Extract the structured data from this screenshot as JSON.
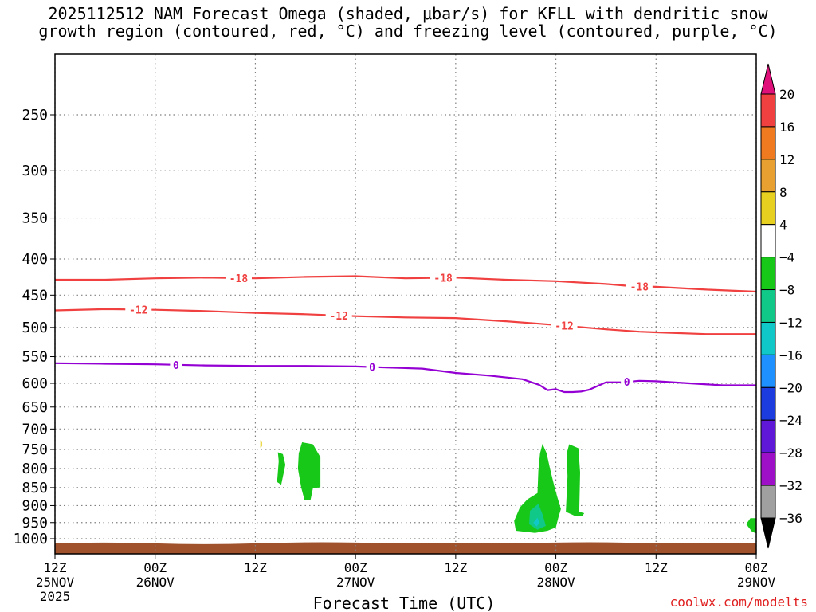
{
  "title": {
    "line1": "2025112512 NAM Forecast Omega (shaded, μbar/s) for KFLL with dendritic snow",
    "line2": "growth region (contoured, red, °C) and freezing level (contoured, purple, °C)"
  },
  "watermark": "coolwx.com/modelts",
  "colors": {
    "temp_contour": "#f04040",
    "freezing_contour": "#9400d3",
    "ground": "#a0522d",
    "grid": "#808080"
  },
  "chart_data": {
    "type": "heatmap",
    "xlabel": "Forecast Time (UTC)",
    "ylabel": "Pressure (hPa)",
    "x_range_hours": [
      0,
      84
    ],
    "y_range_hpa": [
      1050,
      200
    ],
    "y_scale": "log-pressure",
    "x_ticks": [
      {
        "hour": 0,
        "time": "12Z",
        "date": "25NOV",
        "year": "2025"
      },
      {
        "hour": 12,
        "time": "00Z",
        "date": "26NOV",
        "year": ""
      },
      {
        "hour": 24,
        "time": "12Z",
        "date": "",
        "year": ""
      },
      {
        "hour": 36,
        "time": "00Z",
        "date": "27NOV",
        "year": ""
      },
      {
        "hour": 48,
        "time": "12Z",
        "date": "",
        "year": ""
      },
      {
        "hour": 60,
        "time": "00Z",
        "date": "28NOV",
        "year": ""
      },
      {
        "hour": 72,
        "time": "12Z",
        "date": "",
        "year": ""
      },
      {
        "hour": 84,
        "time": "00Z",
        "date": "29NOV",
        "year": ""
      }
    ],
    "y_ticks": [
      250,
      300,
      350,
      400,
      450,
      500,
      550,
      600,
      650,
      700,
      750,
      800,
      850,
      900,
      950,
      1000
    ],
    "colorbar": {
      "title": "Omega (μbar/s)",
      "labels": [
        "20",
        "16",
        "12",
        "8",
        "4",
        "−4",
        "−8",
        "−12",
        "−16",
        "−20",
        "−24",
        "−28",
        "−32",
        "−36"
      ],
      "bands": [
        {
          "range": ">20",
          "color": "#e0107a"
        },
        {
          "range": "16 to 20",
          "color": "#f04040"
        },
        {
          "range": "12 to 16",
          "color": "#f07a20"
        },
        {
          "range": "8 to 12",
          "color": "#e8a030"
        },
        {
          "range": "4 to 8",
          "color": "#e8d020"
        },
        {
          "range": "-4 to 4",
          "color": "#ffffff"
        },
        {
          "range": "-8 to -4",
          "color": "#18c818"
        },
        {
          "range": "-12 to -8",
          "color": "#10c888"
        },
        {
          "range": "-16 to -12",
          "color": "#10c8c8"
        },
        {
          "range": "-20 to -16",
          "color": "#1e90ff"
        },
        {
          "range": "-24 to -20",
          "color": "#1c3ce0"
        },
        {
          "range": "-28 to -24",
          "color": "#6018d8"
        },
        {
          "range": "-32 to -28",
          "color": "#9e10c8"
        },
        {
          "range": "-36 to -32",
          "color": "#a0a0a0"
        },
        {
          "range": "<-36",
          "color": "#000000"
        }
      ]
    },
    "contours": [
      {
        "name": "-18 C isotherm",
        "level": "-18",
        "color": "#f04040",
        "points": [
          [
            0,
            428
          ],
          [
            6,
            428
          ],
          [
            12,
            426
          ],
          [
            18,
            425
          ],
          [
            24,
            426
          ],
          [
            30,
            424
          ],
          [
            36,
            423
          ],
          [
            42,
            426
          ],
          [
            48,
            425
          ],
          [
            54,
            428
          ],
          [
            60,
            430
          ],
          [
            66,
            434
          ],
          [
            69,
            437
          ],
          [
            72,
            438
          ],
          [
            78,
            442
          ],
          [
            84,
            445
          ]
        ],
        "label_hours": [
          22,
          46.5,
          70
        ]
      },
      {
        "name": "-12 C isotherm",
        "level": "-12",
        "color": "#f04040",
        "points": [
          [
            0,
            473
          ],
          [
            6,
            471
          ],
          [
            12,
            472
          ],
          [
            18,
            474
          ],
          [
            24,
            477
          ],
          [
            30,
            479
          ],
          [
            36,
            482
          ],
          [
            42,
            484
          ],
          [
            48,
            485
          ],
          [
            54,
            490
          ],
          [
            58,
            494
          ],
          [
            60,
            496
          ],
          [
            66,
            503
          ],
          [
            70,
            507
          ],
          [
            72,
            508
          ],
          [
            78,
            511
          ],
          [
            84,
            511
          ]
        ],
        "label_hours": [
          10,
          34,
          61
        ]
      },
      {
        "name": "Freezing level (0 C)",
        "level": "0",
        "color": "#9400d3",
        "points": [
          [
            0,
            562
          ],
          [
            6,
            563
          ],
          [
            12,
            564
          ],
          [
            18,
            566
          ],
          [
            24,
            567
          ],
          [
            30,
            567
          ],
          [
            36,
            568
          ],
          [
            40,
            570
          ],
          [
            44,
            572
          ],
          [
            48,
            580
          ],
          [
            52,
            585
          ],
          [
            56,
            592
          ],
          [
            58,
            603
          ],
          [
            59,
            614
          ],
          [
            60,
            612
          ],
          [
            61,
            618
          ],
          [
            62,
            618
          ],
          [
            63,
            617
          ],
          [
            64,
            613
          ],
          [
            66,
            598
          ],
          [
            68,
            598
          ],
          [
            70,
            595
          ],
          [
            72,
            596
          ],
          [
            76,
            600
          ],
          [
            80,
            604
          ],
          [
            84,
            604
          ]
        ],
        "label_hours": [
          14.5,
          38,
          68.5
        ]
      }
    ],
    "omega_regions": [
      {
        "band": "4 to 8",
        "color": "#e8d020",
        "points": [
          [
            24.6,
            727
          ],
          [
            24.8,
            732
          ],
          [
            24.8,
            742
          ],
          [
            24.6,
            746
          ]
        ]
      },
      {
        "band": "-8 to -4",
        "color": "#18c818",
        "points": [
          [
            26.7,
            757
          ],
          [
            27.3,
            762
          ],
          [
            27.6,
            790
          ],
          [
            27.1,
            842
          ],
          [
            26.6,
            835
          ],
          [
            26.8,
            780
          ]
        ]
      },
      {
        "band": "-8 to -4",
        "color": "#18c818",
        "points": [
          [
            29.6,
            732
          ],
          [
            30.9,
            737
          ],
          [
            31.8,
            770
          ],
          [
            31.8,
            849
          ],
          [
            30.9,
            852
          ],
          [
            30.6,
            885
          ],
          [
            29.9,
            885
          ],
          [
            29.5,
            850
          ],
          [
            29.1,
            800
          ],
          [
            29.2,
            760
          ]
        ]
      },
      {
        "band": "-8 to -4",
        "color": "#18c818",
        "points": [
          [
            58.4,
            736
          ],
          [
            58.9,
            760
          ],
          [
            59.3,
            800
          ],
          [
            59.8,
            845
          ],
          [
            60.2,
            878
          ],
          [
            60.6,
            910
          ],
          [
            60.3,
            935
          ],
          [
            60.0,
            965
          ],
          [
            59.0,
            975
          ],
          [
            57.5,
            982
          ],
          [
            55.2,
            975
          ],
          [
            55.0,
            945
          ],
          [
            55.7,
            905
          ],
          [
            56.6,
            882
          ],
          [
            57.8,
            865
          ],
          [
            57.9,
            805
          ],
          [
            58.1,
            760
          ]
        ]
      },
      {
        "band": "-8 to -4",
        "color": "#18c818",
        "points": [
          [
            61.6,
            737
          ],
          [
            62.7,
            747
          ],
          [
            62.9,
            810
          ],
          [
            62.8,
            918
          ],
          [
            63.4,
            922
          ],
          [
            63.2,
            929
          ],
          [
            62.2,
            929
          ],
          [
            61.2,
            918
          ],
          [
            61.4,
            820
          ],
          [
            61.3,
            760
          ]
        ]
      },
      {
        "band": "-12 to -8",
        "color": "#10c888",
        "points": [
          [
            57.9,
            895
          ],
          [
            58.4,
            925
          ],
          [
            58.8,
            960
          ],
          [
            57.8,
            972
          ],
          [
            56.8,
            955
          ],
          [
            56.9,
            915
          ]
        ]
      },
      {
        "band": "-16 to -12",
        "color": "#10c8c8",
        "points": [
          [
            57.8,
            935
          ],
          [
            58.0,
            950
          ],
          [
            57.7,
            962
          ],
          [
            57.3,
            950
          ]
        ]
      },
      {
        "band": "-8 to -4",
        "color": "#18c818",
        "points": [
          [
            83.3,
            937
          ],
          [
            84.0,
            937
          ],
          [
            84.0,
            983
          ],
          [
            83.5,
            978
          ],
          [
            82.8,
            955
          ]
        ]
      }
    ],
    "ground_pressure_hpa": 1015
  }
}
